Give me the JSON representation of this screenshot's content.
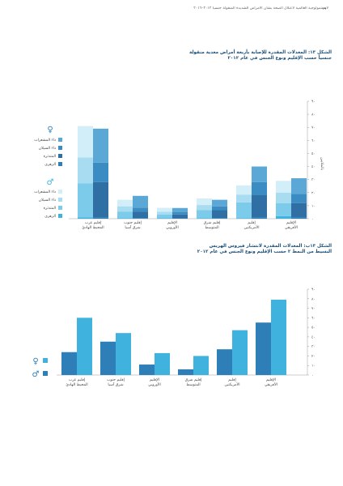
{
  "header": {
    "page_number": "١٩",
    "running_title": "لابستمولوجية العالمية لاعتلال الصحة بشأن الأمراض الشديدة المنقولة جنسياً ٢٠١٢–٢٠١٦"
  },
  "figure1": {
    "title_line1": "الشكل ١٣: المعدلات المقدرة للإصابة بأربعة أمراض معدية منقولة",
    "title_line2": "جنسياً حسب الإقليم ونوع الجنس في عام ٢٠١٢"
  },
  "figure2": {
    "title_line1": "الشكل ١٣ب: المعدلات المقدرة لانتشار فيروس الهربس",
    "title_line2": "البسيط من النمط ٢ حسب الإقليم ونوع الجنس في عام ٢٠١٢"
  },
  "colors": {
    "female_base": "#2e7fb8",
    "male_base": "#3fb3dd"
  },
  "chart_data": [
    {
      "type": "bar",
      "stacked": true,
      "categories": [
        "إقليم غرب المحيط الهادئ",
        "إقليم جنوب شرق آسيا",
        "الإقليم الأوروبي",
        "إقليم شرق المتوسط",
        "إقليم الأمريكتين",
        "الإقليم الأفريقي"
      ],
      "category_lines": [
        [
          "إقليم غرب",
          "المحيط الهادئ"
        ],
        [
          "إقليم جنوب",
          "شرق آسيا"
        ],
        [
          "الإقليم",
          "الأوروبي"
        ],
        [
          "إقليم شرق",
          "المتوسط"
        ],
        [
          "إقليم",
          "الأمريكتين"
        ],
        [
          "الإقليم",
          "الأفريقي"
        ]
      ],
      "ylabel": "بالملايين",
      "ylim": [
        0,
        90
      ],
      "yticks": [
        "٠",
        "١٠",
        "٢٠",
        "٣٠",
        "٤٠",
        "٥٠",
        "٦٠",
        "٧٠",
        "٨٠",
        "٩٠"
      ],
      "legend": {
        "female_symbol": "♀",
        "male_symbol": "♂",
        "female_items": [
          "داء المشعرات",
          "داء السيلان",
          "المتدثرة",
          "الزهري"
        ],
        "male_items": [
          "داء المشعرات",
          "داء السيلان",
          "المتدثرة",
          "الزهري"
        ]
      },
      "components": [
        "الزهري",
        "المتدثرة",
        "داء السيلان",
        "داء المشعرات"
      ],
      "series": [
        {
          "name": "male",
          "colors": [
            "#3fb3dd",
            "#7ccbea",
            "#a8dcf1",
            "#d2eef9"
          ],
          "values": [
            [
              1,
              26,
              20,
              24
            ],
            [
              0.5,
              5,
              4,
              5
            ],
            [
              0.3,
              3,
              2,
              3
            ],
            [
              0.5,
              6,
              4,
              5
            ],
            [
              0.5,
              12,
              6,
              7
            ],
            [
              2,
              10,
              8,
              9
            ]
          ]
        },
        {
          "name": "female",
          "colors": [
            "#2e7fb8",
            "#2f6fa3",
            "#3b8cc2",
            "#5ba7d6"
          ],
          "values": [
            [
              1,
              27,
              15,
              26
            ],
            [
              0.5,
              5,
              3,
              9
            ],
            [
              0.2,
              3,
              2,
              3
            ],
            [
              0.5,
              6,
              3,
              5
            ],
            [
              1,
              17,
              10,
              12
            ],
            [
              1,
              11,
              7,
              12
            ]
          ]
        }
      ]
    },
    {
      "type": "bar",
      "categories": [
        "إقليم غرب المحيط الهادئ",
        "إقليم جنوب شرق آسيا",
        "الإقليم الأوروبي",
        "إقليم شرق المتوسط",
        "إقليم الأمريكتين",
        "الإقليم الأفريقي"
      ],
      "category_lines": [
        [
          "إقليم غرب",
          "المحيط الهادئ"
        ],
        [
          "إقليم جنوب",
          "شرق آسيا"
        ],
        [
          "الإقليم",
          "الأوروبي"
        ],
        [
          "إقليم شرق",
          "المتوسط"
        ],
        [
          "إقليم",
          "الأمريكتين"
        ],
        [
          "الإقليم",
          "الأفريقي"
        ]
      ],
      "ylim": [
        0,
        90
      ],
      "yticks": [
        "٠",
        "١٠",
        "٢٠",
        "٣٠",
        "٤٠",
        "٥٠",
        "٦٠",
        "٧٠",
        "٨٠",
        "٩٠"
      ],
      "legend": {
        "female_symbol": "♀",
        "male_symbol": "♂"
      },
      "series": [
        {
          "name": "female",
          "color": "#2e7fb8",
          "values": [
            24,
            35,
            11,
            6,
            27,
            55
          ]
        },
        {
          "name": "male",
          "color": "#3fb3dd",
          "values": [
            60,
            44,
            23,
            20,
            47,
            79
          ]
        }
      ]
    }
  ]
}
